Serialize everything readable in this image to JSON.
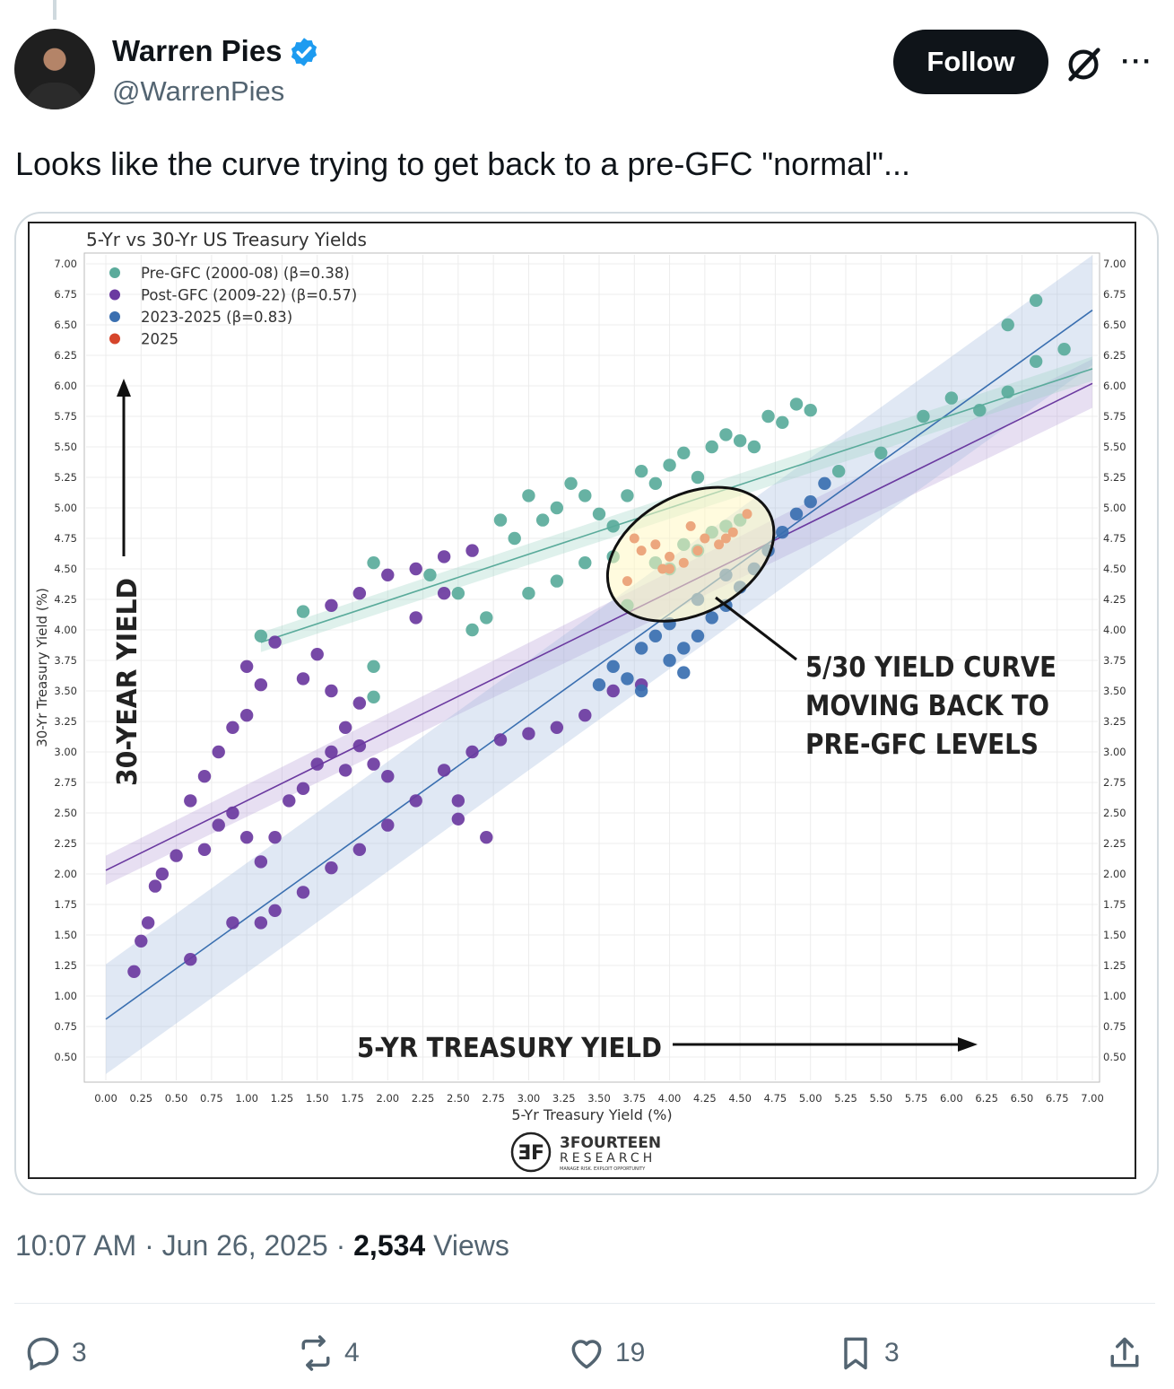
{
  "author": {
    "name": "Warren Pies",
    "handle": "@WarrenPies",
    "verified_color": "#1d9bf0"
  },
  "header": {
    "follow_label": "Follow",
    "more_label": "···",
    "grok_icon": "grok-icon"
  },
  "tweet": {
    "text": "Looks like the curve trying to get back to a pre-GFC \"normal\"..."
  },
  "meta": {
    "time": "10:07 AM · Jun 26, 2025 · ",
    "views_count": "2,534",
    "views_label": " Views"
  },
  "actions": {
    "replies": "3",
    "reposts": "4",
    "likes": "19",
    "bookmarks": "3"
  },
  "chart_data": {
    "type": "scatter",
    "title": "5-Yr vs 30-Yr US Treasury Yields",
    "xlabel": "5-Yr Treasury Yield (%)",
    "ylabel": "30-Yr Treasury Yield (%)",
    "xlim": [
      0,
      7
    ],
    "ylim": [
      0.5,
      7
    ],
    "x_ticks": [
      "0.00",
      "0.25",
      "0.50",
      "0.75",
      "1.00",
      "1.25",
      "1.50",
      "1.75",
      "2.00",
      "2.25",
      "2.50",
      "2.75",
      "3.00",
      "3.25",
      "3.50",
      "3.75",
      "4.00",
      "4.25",
      "4.50",
      "4.75",
      "5.00",
      "5.25",
      "5.50",
      "5.75",
      "6.00",
      "6.25",
      "6.50",
      "6.75",
      "7.00"
    ],
    "y_ticks": [
      "0.50",
      "0.75",
      "1.00",
      "1.25",
      "1.50",
      "1.75",
      "2.00",
      "2.25",
      "2.50",
      "2.75",
      "3.00",
      "3.25",
      "3.50",
      "3.75",
      "4.00",
      "4.25",
      "4.50",
      "4.75",
      "5.00",
      "5.25",
      "5.50",
      "5.75",
      "6.00",
      "6.25",
      "6.50",
      "6.75",
      "7.00"
    ],
    "legend_position": "top-left",
    "grid": true,
    "series": [
      {
        "name": "Pre-GFC (2000-08) (β=0.38)",
        "color": "#5aab9b",
        "fit": {
          "intercept": 3.48,
          "slope": 0.38
        },
        "points": [
          [
            1.1,
            3.95
          ],
          [
            1.4,
            4.15
          ],
          [
            1.9,
            4.55
          ],
          [
            2.3,
            4.45
          ],
          [
            2.5,
            4.3
          ],
          [
            2.7,
            4.1
          ],
          [
            2.8,
            4.9
          ],
          [
            2.9,
            4.75
          ],
          [
            3.0,
            5.1
          ],
          [
            3.1,
            4.9
          ],
          [
            3.2,
            5.0
          ],
          [
            3.3,
            5.2
          ],
          [
            3.4,
            5.1
          ],
          [
            3.5,
            4.95
          ],
          [
            3.6,
            4.85
          ],
          [
            3.7,
            5.1
          ],
          [
            3.8,
            5.3
          ],
          [
            3.9,
            5.2
          ],
          [
            4.0,
            5.35
          ],
          [
            4.1,
            5.45
          ],
          [
            4.2,
            5.25
          ],
          [
            4.3,
            5.5
          ],
          [
            4.4,
            5.6
          ],
          [
            4.5,
            5.55
          ],
          [
            4.6,
            5.5
          ],
          [
            4.7,
            5.75
          ],
          [
            4.8,
            5.7
          ],
          [
            4.9,
            5.85
          ],
          [
            5.0,
            5.8
          ],
          [
            3.0,
            4.3
          ],
          [
            3.2,
            4.4
          ],
          [
            3.4,
            4.55
          ],
          [
            3.6,
            4.6
          ],
          [
            3.9,
            4.55
          ],
          [
            4.1,
            4.7
          ],
          [
            4.3,
            4.8
          ],
          [
            4.5,
            4.9
          ],
          [
            5.2,
            5.3
          ],
          [
            5.5,
            5.45
          ],
          [
            5.8,
            5.75
          ],
          [
            6.0,
            5.9
          ],
          [
            6.2,
            5.8
          ],
          [
            6.4,
            5.95
          ],
          [
            6.6,
            6.2
          ],
          [
            6.8,
            6.3
          ],
          [
            6.6,
            6.7
          ],
          [
            6.4,
            6.5
          ],
          [
            1.9,
            3.7
          ],
          [
            1.9,
            3.45
          ],
          [
            2.6,
            4.0
          ],
          [
            3.7,
            4.2
          ],
          [
            4.0,
            4.5
          ],
          [
            4.2,
            4.65
          ],
          [
            4.4,
            4.85
          ]
        ]
      },
      {
        "name": "Post-GFC (2009-22) (β=0.57)",
        "color": "#6b3aa0",
        "fit": {
          "intercept": 2.03,
          "slope": 0.57
        },
        "points": [
          [
            0.2,
            1.2
          ],
          [
            0.25,
            1.45
          ],
          [
            0.3,
            1.6
          ],
          [
            0.35,
            1.9
          ],
          [
            0.4,
            2.0
          ],
          [
            0.5,
            2.15
          ],
          [
            0.6,
            2.6
          ],
          [
            0.7,
            2.8
          ],
          [
            0.8,
            3.0
          ],
          [
            0.9,
            3.2
          ],
          [
            1.0,
            3.3
          ],
          [
            1.1,
            3.55
          ],
          [
            0.7,
            2.2
          ],
          [
            0.8,
            2.4
          ],
          [
            0.9,
            2.5
          ],
          [
            1.0,
            2.3
          ],
          [
            1.1,
            2.1
          ],
          [
            1.2,
            2.3
          ],
          [
            1.3,
            2.6
          ],
          [
            1.4,
            2.7
          ],
          [
            1.5,
            2.9
          ],
          [
            1.6,
            3.0
          ],
          [
            1.7,
            2.85
          ],
          [
            1.8,
            3.05
          ],
          [
            1.9,
            2.9
          ],
          [
            2.0,
            2.8
          ],
          [
            1.4,
            3.6
          ],
          [
            1.5,
            3.8
          ],
          [
            1.6,
            3.5
          ],
          [
            1.7,
            3.2
          ],
          [
            1.8,
            3.4
          ],
          [
            1.6,
            4.2
          ],
          [
            1.8,
            4.3
          ],
          [
            2.0,
            4.45
          ],
          [
            2.2,
            4.5
          ],
          [
            2.4,
            4.6
          ],
          [
            2.6,
            4.65
          ],
          [
            2.2,
            4.1
          ],
          [
            2.4,
            4.3
          ],
          [
            2.5,
            2.6
          ],
          [
            2.5,
            2.45
          ],
          [
            2.7,
            2.3
          ],
          [
            1.2,
            1.7
          ],
          [
            1.4,
            1.85
          ],
          [
            1.6,
            2.05
          ],
          [
            1.8,
            2.2
          ],
          [
            2.0,
            2.4
          ],
          [
            2.2,
            2.6
          ],
          [
            2.4,
            2.85
          ],
          [
            2.6,
            3.0
          ],
          [
            2.8,
            3.1
          ],
          [
            3.0,
            3.15
          ],
          [
            3.2,
            3.2
          ],
          [
            3.4,
            3.3
          ],
          [
            3.6,
            3.5
          ],
          [
            3.8,
            3.55
          ],
          [
            0.6,
            1.3
          ],
          [
            0.9,
            1.6
          ],
          [
            1.1,
            1.6
          ],
          [
            1.0,
            3.7
          ],
          [
            1.2,
            3.9
          ]
        ]
      },
      {
        "name": "2023-2025 (β=0.83)",
        "color": "#3a6fb0",
        "fit": {
          "intercept": 0.81,
          "slope": 0.83
        },
        "points": [
          [
            3.5,
            3.55
          ],
          [
            3.6,
            3.7
          ],
          [
            3.7,
            3.6
          ],
          [
            3.8,
            3.85
          ],
          [
            3.9,
            3.95
          ],
          [
            4.0,
            3.75
          ],
          [
            4.1,
            3.85
          ],
          [
            4.2,
            3.95
          ],
          [
            4.3,
            4.1
          ],
          [
            4.4,
            4.2
          ],
          [
            4.5,
            4.35
          ],
          [
            4.6,
            4.5
          ],
          [
            4.7,
            4.65
          ],
          [
            4.8,
            4.8
          ],
          [
            4.9,
            4.95
          ],
          [
            5.0,
            5.05
          ],
          [
            5.1,
            5.2
          ],
          [
            4.0,
            4.05
          ],
          [
            4.2,
            4.25
          ],
          [
            4.4,
            4.45
          ],
          [
            3.8,
            3.5
          ],
          [
            4.1,
            3.65
          ]
        ]
      },
      {
        "name": "2025",
        "color": "#d6452b",
        "points": [
          [
            3.7,
            4.4
          ],
          [
            3.8,
            4.65
          ],
          [
            3.9,
            4.7
          ],
          [
            4.0,
            4.6
          ],
          [
            4.1,
            4.55
          ],
          [
            4.15,
            4.85
          ],
          [
            4.25,
            4.75
          ],
          [
            4.35,
            4.7
          ],
          [
            4.45,
            4.8
          ],
          [
            4.55,
            4.95
          ],
          [
            4.0,
            4.5
          ],
          [
            4.2,
            4.65
          ],
          [
            3.95,
            4.5
          ],
          [
            3.75,
            4.75
          ],
          [
            4.4,
            4.75
          ]
        ]
      }
    ],
    "annotations": {
      "y_arrow_label": "30-YEAR YIELD",
      "x_arrow_label": "5-YR TREASURY YIELD",
      "callout_lines": [
        "5/30 YIELD CURVE",
        "MOVING BACK TO",
        "PRE-GFC LEVELS"
      ],
      "callout_ellipse_center": [
        4.15,
        4.62
      ]
    },
    "logo": {
      "big": "3FOURTEEN",
      "small": "RESEARCH",
      "tiny": "MANAGE RISK. EXPLOIT OPPORTUNITY"
    }
  }
}
